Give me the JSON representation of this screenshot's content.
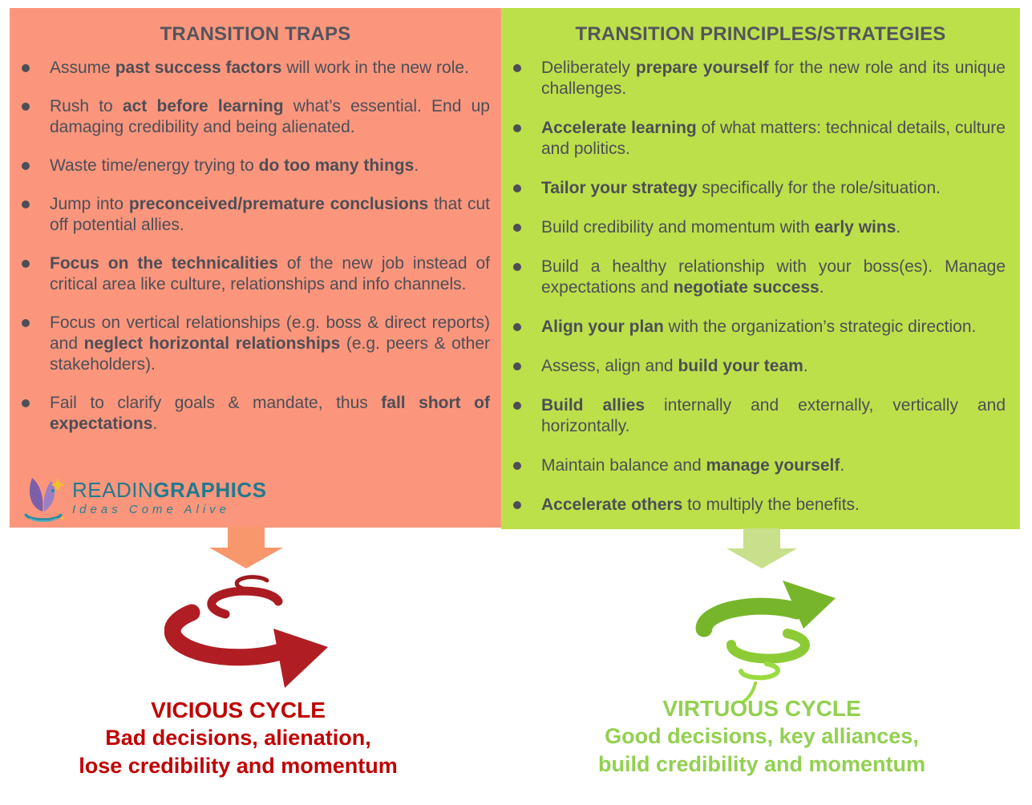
{
  "left_panel": {
    "title": "TRANSITION TRAPS",
    "bg_color": "#FB967D",
    "bullets": [
      {
        "segments": [
          {
            "t": "Assume "
          },
          {
            "t": "past success factors",
            "b": true
          },
          {
            "t": " will work in the new role."
          }
        ]
      },
      {
        "segments": [
          {
            "t": "Rush to "
          },
          {
            "t": "act before learning",
            "b": true
          },
          {
            "t": " what’s essential. End up damaging credibility and being alienated."
          }
        ]
      },
      {
        "segments": [
          {
            "t": "Waste time/energy trying to "
          },
          {
            "t": "do too many things",
            "b": true
          },
          {
            "t": "."
          }
        ]
      },
      {
        "segments": [
          {
            "t": "Jump into "
          },
          {
            "t": "preconceived/premature conclusions",
            "b": true
          },
          {
            "t": " that cut off potential allies."
          }
        ]
      },
      {
        "segments": [
          {
            "t": "Focus on the technicalities",
            "b": true
          },
          {
            "t": " of the new job instead of critical area like culture, relationships and info channels."
          }
        ]
      },
      {
        "segments": [
          {
            "t": "Focus on vertical relationships (e.g. boss & direct reports) and "
          },
          {
            "t": "neglect horizontal relationships",
            "b": true
          },
          {
            "t": " (e.g. peers & other stakeholders)."
          }
        ]
      },
      {
        "segments": [
          {
            "t": "Fail to clarify goals & mandate, thus "
          },
          {
            "t": "fall short of expectations",
            "b": true
          },
          {
            "t": "."
          }
        ]
      }
    ]
  },
  "right_panel": {
    "title": "TRANSITION PRINCIPLES/STRATEGIES",
    "bg_color": "#BCE04A",
    "bullets": [
      {
        "segments": [
          {
            "t": "Deliberately "
          },
          {
            "t": "prepare yourself",
            "b": true
          },
          {
            "t": " for the new role and its unique challenges."
          }
        ]
      },
      {
        "segments": [
          {
            "t": "Accelerate learning",
            "b": true
          },
          {
            "t": " of what matters: technical details, culture and politics."
          }
        ]
      },
      {
        "segments": [
          {
            "t": "Tailor your strategy",
            "b": true
          },
          {
            "t": " specifically for the role/situation."
          }
        ]
      },
      {
        "segments": [
          {
            "t": "Build credibility and momentum with "
          },
          {
            "t": "early wins",
            "b": true
          },
          {
            "t": "."
          }
        ]
      },
      {
        "segments": [
          {
            "t": "Build a healthy relationship with your boss(es). Manage expectations and "
          },
          {
            "t": "negotiate success",
            "b": true
          },
          {
            "t": "."
          }
        ]
      },
      {
        "segments": [
          {
            "t": "Align your plan",
            "b": true
          },
          {
            "t": " with the organization’s strategic direction."
          }
        ]
      },
      {
        "segments": [
          {
            "t": "Assess, align and "
          },
          {
            "t": "build your team",
            "b": true
          },
          {
            "t": "."
          }
        ]
      },
      {
        "segments": [
          {
            "t": "Build allies",
            "b": true
          },
          {
            "t": " internally and externally, vertically and horizontally."
          }
        ]
      },
      {
        "segments": [
          {
            "t": "Maintain balance and "
          },
          {
            "t": "manage yourself",
            "b": true
          },
          {
            "t": "."
          }
        ]
      },
      {
        "segments": [
          {
            "t": "Accelerate others",
            "b": true
          },
          {
            "t": " to multiply the benefits."
          }
        ]
      }
    ]
  },
  "logo": {
    "brand_light": "READIN",
    "brand_bold": "GRAPHICS",
    "tagline": "Ideas Come Alive",
    "brand_color": "#1F7A8E"
  },
  "vicious": {
    "title": "VICIOUS CYCLE",
    "line1": "Bad decisions, alienation,",
    "line2": "lose credibility and momentum",
    "color": "#C00000"
  },
  "virtuous": {
    "title": "VIRTUOUS CYCLE",
    "line1": "Good decisions, key alliances,",
    "line2": "build credibility and momentum",
    "color": "#92D050"
  },
  "colors": {
    "left_arrow": "#F9976C",
    "right_arrow": "#C8DF8B",
    "red_spiral": "#B01E24",
    "green_spiral": "#7DBD2D",
    "body_text": "#4D4E56"
  }
}
